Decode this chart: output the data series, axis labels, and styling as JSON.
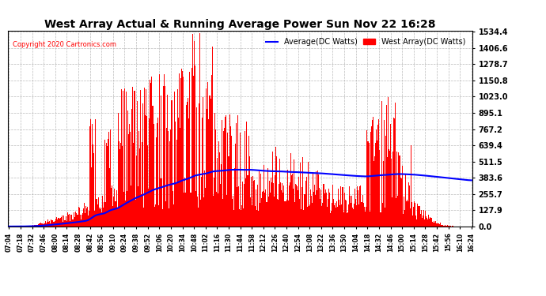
{
  "title": "West Array Actual & Running Average Power Sun Nov 22 16:28",
  "copyright": "Copyright 2020 Cartronics.com",
  "legend_avg": "Average(DC Watts)",
  "legend_west": "West Array(DC Watts)",
  "ylabel_values": [
    0.0,
    127.9,
    255.7,
    383.6,
    511.5,
    639.4,
    767.2,
    895.1,
    1023.0,
    1150.8,
    1278.7,
    1406.6,
    1534.4
  ],
  "ymax": 1534.4,
  "ymin": 0.0,
  "fill_color": "red",
  "avg_color": "blue",
  "bg_color": "#ffffff",
  "grid_color": "#aaaaaa",
  "title_color": "black",
  "copyright_color": "red",
  "legend_avg_color": "blue",
  "legend_west_color": "red",
  "xtick_labels": [
    "07:04",
    "07:18",
    "07:32",
    "07:46",
    "08:00",
    "08:14",
    "08:28",
    "08:42",
    "08:56",
    "09:10",
    "09:24",
    "09:38",
    "09:52",
    "10:06",
    "10:20",
    "10:34",
    "10:48",
    "11:02",
    "11:16",
    "11:30",
    "11:44",
    "11:58",
    "12:12",
    "12:26",
    "12:40",
    "12:54",
    "13:08",
    "13:22",
    "13:36",
    "13:50",
    "14:04",
    "14:18",
    "14:32",
    "14:46",
    "15:00",
    "15:14",
    "15:28",
    "15:42",
    "15:56",
    "16:10",
    "16:24"
  ]
}
